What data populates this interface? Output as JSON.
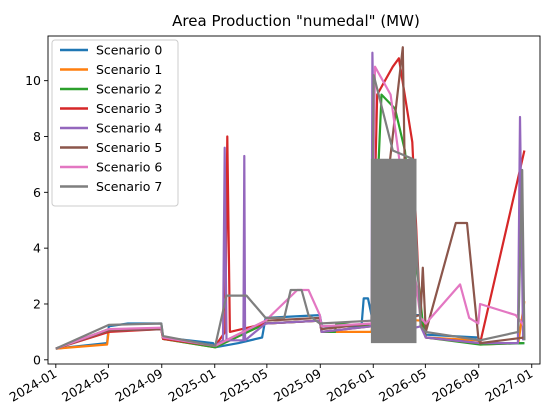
{
  "chart_data": {
    "type": "line",
    "title": "Area Production \"numedal\" (MW)",
    "xlabel": "",
    "ylabel": "",
    "x_ticks": [
      "2024-01",
      "2024-05",
      "2024-09",
      "2025-01",
      "2025-05",
      "2025-09",
      "2026-01",
      "2026-05",
      "2026-09",
      "2027-01"
    ],
    "y_ticks": [
      "0",
      "2",
      "4",
      "6",
      "8",
      "10"
    ],
    "xlim": [
      "2023-12-14",
      "2027-01-20"
    ],
    "ylim": [
      -0.15,
      11.6
    ],
    "legend_position": "upper-left",
    "grid": false,
    "series": [
      {
        "name": "Scenario 0",
        "color": "#1f77b4",
        "points": [
          [
            "2024-01-01",
            0.4
          ],
          [
            "2024-04-28",
            0.6
          ],
          [
            "2024-05-02",
            1.2
          ],
          [
            "2024-06-15",
            1.3
          ],
          [
            "2024-08-31",
            1.3
          ],
          [
            "2024-09-04",
            0.8
          ],
          [
            "2024-12-28",
            0.6
          ],
          [
            "2025-01-02",
            0.45
          ],
          [
            "2025-02-25",
            0.6
          ],
          [
            "2025-04-20",
            0.8
          ],
          [
            "2025-04-28",
            1.5
          ],
          [
            "2025-08-31",
            1.6
          ],
          [
            "2025-09-05",
            1.2
          ],
          [
            "2025-12-05",
            1.2
          ],
          [
            "2025-12-10",
            2.2
          ],
          [
            "2025-12-20",
            2.2
          ],
          [
            "2025-12-28",
            1.6
          ],
          [
            "2026-04-20",
            1.6
          ],
          [
            "2026-05-02",
            0.9
          ],
          [
            "2026-08-31",
            0.8
          ],
          [
            "2026-09-04",
            0.6
          ],
          [
            "2026-11-25",
            0.6
          ],
          [
            "2026-12-15",
            0.6
          ]
        ]
      },
      {
        "name": "Scenario 1",
        "color": "#ff7f0e",
        "points": [
          [
            "2024-01-01",
            0.4
          ],
          [
            "2024-04-28",
            0.55
          ],
          [
            "2024-05-02",
            1.05
          ],
          [
            "2024-08-31",
            1.1
          ],
          [
            "2024-09-04",
            0.75
          ],
          [
            "2025-01-02",
            0.45
          ],
          [
            "2025-04-28",
            1.3
          ],
          [
            "2025-08-31",
            1.4
          ],
          [
            "2025-09-04",
            1.0
          ],
          [
            "2025-12-28",
            1.0
          ],
          [
            "2026-01-01",
            1.5
          ],
          [
            "2026-04-25",
            1.4
          ],
          [
            "2026-05-02",
            0.8
          ],
          [
            "2026-08-31",
            0.7
          ],
          [
            "2026-09-04",
            0.55
          ],
          [
            "2026-12-01",
            0.6
          ],
          [
            "2026-12-15",
            2.1
          ]
        ]
      },
      {
        "name": "Scenario 2",
        "color": "#2ca02c",
        "points": [
          [
            "2024-01-01",
            0.4
          ],
          [
            "2024-05-02",
            1.1
          ],
          [
            "2024-08-31",
            1.1
          ],
          [
            "2024-09-04",
            0.75
          ],
          [
            "2025-01-02",
            0.45
          ],
          [
            "2025-04-28",
            1.3
          ],
          [
            "2025-08-31",
            1.4
          ],
          [
            "2025-09-04",
            1.0
          ],
          [
            "2025-10-05",
            1.0
          ],
          [
            "2025-10-08",
            1.3
          ],
          [
            "2025-12-28",
            1.2
          ],
          [
            "2026-01-20",
            9.5
          ],
          [
            "2026-02-20",
            9.0
          ],
          [
            "2026-03-15",
            7.5
          ],
          [
            "2026-04-25",
            1.3
          ],
          [
            "2026-05-02",
            0.8
          ],
          [
            "2026-09-04",
            0.55
          ],
          [
            "2026-12-15",
            0.6
          ]
        ]
      },
      {
        "name": "Scenario 3",
        "color": "#d62728",
        "points": [
          [
            "2024-01-01",
            0.4
          ],
          [
            "2024-05-02",
            1.0
          ],
          [
            "2024-08-31",
            1.1
          ],
          [
            "2024-09-04",
            0.75
          ],
          [
            "2025-01-02",
            0.5
          ],
          [
            "2025-01-25",
            1.0
          ],
          [
            "2025-01-30",
            8.0
          ],
          [
            "2025-02-05",
            1.0
          ],
          [
            "2025-04-28",
            1.3
          ],
          [
            "2025-08-31",
            1.4
          ],
          [
            "2025-09-04",
            1.0
          ],
          [
            "2025-12-28",
            1.2
          ],
          [
            "2026-01-10",
            9.5
          ],
          [
            "2026-02-15",
            10.5
          ],
          [
            "2026-03-01",
            10.8
          ],
          [
            "2026-04-01",
            7.8
          ],
          [
            "2026-04-20",
            1.3
          ],
          [
            "2026-05-02",
            0.8
          ],
          [
            "2026-09-04",
            0.6
          ],
          [
            "2026-12-15",
            7.5
          ]
        ]
      },
      {
        "name": "Scenario 4",
        "color": "#9467bd",
        "points": [
          [
            "2024-01-01",
            0.4
          ],
          [
            "2024-05-02",
            1.05
          ],
          [
            "2024-08-31",
            1.1
          ],
          [
            "2024-09-04",
            0.8
          ],
          [
            "2025-01-02",
            0.5
          ],
          [
            "2025-01-20",
            0.7
          ],
          [
            "2025-01-24",
            7.6
          ],
          [
            "2025-01-28",
            0.7
          ],
          [
            "2025-03-08",
            0.7
          ],
          [
            "2025-03-10",
            7.3
          ],
          [
            "2025-03-12",
            0.7
          ],
          [
            "2025-04-28",
            1.3
          ],
          [
            "2025-08-31",
            1.4
          ],
          [
            "2025-09-04",
            1.0
          ],
          [
            "2025-12-28",
            1.2
          ],
          [
            "2025-12-30",
            11.0
          ],
          [
            "2026-01-10",
            0.8
          ],
          [
            "2026-04-20",
            1.2
          ],
          [
            "2026-05-02",
            0.8
          ],
          [
            "2026-09-04",
            0.6
          ],
          [
            "2026-11-30",
            0.6
          ],
          [
            "2026-12-05",
            8.7
          ],
          [
            "2026-12-12",
            0.7
          ]
        ]
      },
      {
        "name": "Scenario 5",
        "color": "#8c564b",
        "points": [
          [
            "2024-01-01",
            0.4
          ],
          [
            "2024-05-02",
            1.05
          ],
          [
            "2024-08-31",
            1.1
          ],
          [
            "2024-09-04",
            0.8
          ],
          [
            "2025-01-02",
            0.5
          ],
          [
            "2025-04-28",
            1.4
          ],
          [
            "2025-08-31",
            1.5
          ],
          [
            "2025-09-04",
            1.1
          ],
          [
            "2025-12-28",
            1.3
          ],
          [
            "2026-03-10",
            11.2
          ],
          [
            "2026-03-20",
            1.5
          ],
          [
            "2026-04-20",
            1.6
          ],
          [
            "2026-04-25",
            3.3
          ],
          [
            "2026-05-02",
            1.0
          ],
          [
            "2026-07-10",
            4.9
          ],
          [
            "2026-08-05",
            4.9
          ],
          [
            "2026-08-31",
            0.8
          ],
          [
            "2026-09-04",
            0.6
          ],
          [
            "2026-12-15",
            0.8
          ]
        ]
      },
      {
        "name": "Scenario 6",
        "color": "#e377c2",
        "points": [
          [
            "2024-01-01",
            0.4
          ],
          [
            "2024-05-02",
            1.1
          ],
          [
            "2024-08-31",
            1.15
          ],
          [
            "2024-09-04",
            0.8
          ],
          [
            "2025-01-02",
            0.5
          ],
          [
            "2025-04-28",
            1.4
          ],
          [
            "2025-07-10",
            2.5
          ],
          [
            "2025-08-05",
            2.5
          ],
          [
            "2025-08-31",
            1.6
          ],
          [
            "2025-09-04",
            1.2
          ],
          [
            "2025-12-28",
            1.3
          ],
          [
            "2026-01-05",
            10.5
          ],
          [
            "2026-02-10",
            9.5
          ],
          [
            "2026-04-20",
            1.5
          ],
          [
            "2026-05-02",
            1.3
          ],
          [
            "2026-07-20",
            2.7
          ],
          [
            "2026-08-10",
            1.5
          ],
          [
            "2026-08-31",
            1.3
          ],
          [
            "2026-09-04",
            2.0
          ],
          [
            "2026-11-25",
            1.6
          ],
          [
            "2026-12-15",
            1.2
          ]
        ]
      },
      {
        "name": "Scenario 7",
        "color": "#7f7f7f",
        "points": [
          [
            "2024-01-01",
            0.4
          ],
          [
            "2024-05-02",
            1.25
          ],
          [
            "2024-08-31",
            1.3
          ],
          [
            "2024-09-04",
            0.85
          ],
          [
            "2025-01-02",
            0.5
          ],
          [
            "2025-01-28",
            2.3
          ],
          [
            "2025-03-15",
            2.3
          ],
          [
            "2025-04-28",
            1.5
          ],
          [
            "2025-06-10",
            1.5
          ],
          [
            "2025-06-25",
            2.5
          ],
          [
            "2025-07-20",
            2.5
          ],
          [
            "2025-08-05",
            1.6
          ],
          [
            "2025-08-31",
            1.3
          ],
          [
            "2025-12-28",
            1.4
          ],
          [
            "2026-01-02",
            10.2
          ],
          [
            "2026-02-15",
            7.5
          ],
          [
            "2026-04-01",
            7.2
          ],
          [
            "2026-04-20",
            1.2
          ],
          [
            "2026-05-02",
            1.0
          ],
          [
            "2026-09-04",
            0.7
          ],
          [
            "2026-12-01",
            1.0
          ],
          [
            "2026-12-10",
            6.8
          ],
          [
            "2026-12-15",
            0.7
          ]
        ]
      }
    ],
    "dense_spans": [
      {
        "series": "Scenario 7",
        "start": "2025-12-28",
        "end": "2026-04-10",
        "low": 0.6,
        "high": 7.2
      }
    ]
  }
}
